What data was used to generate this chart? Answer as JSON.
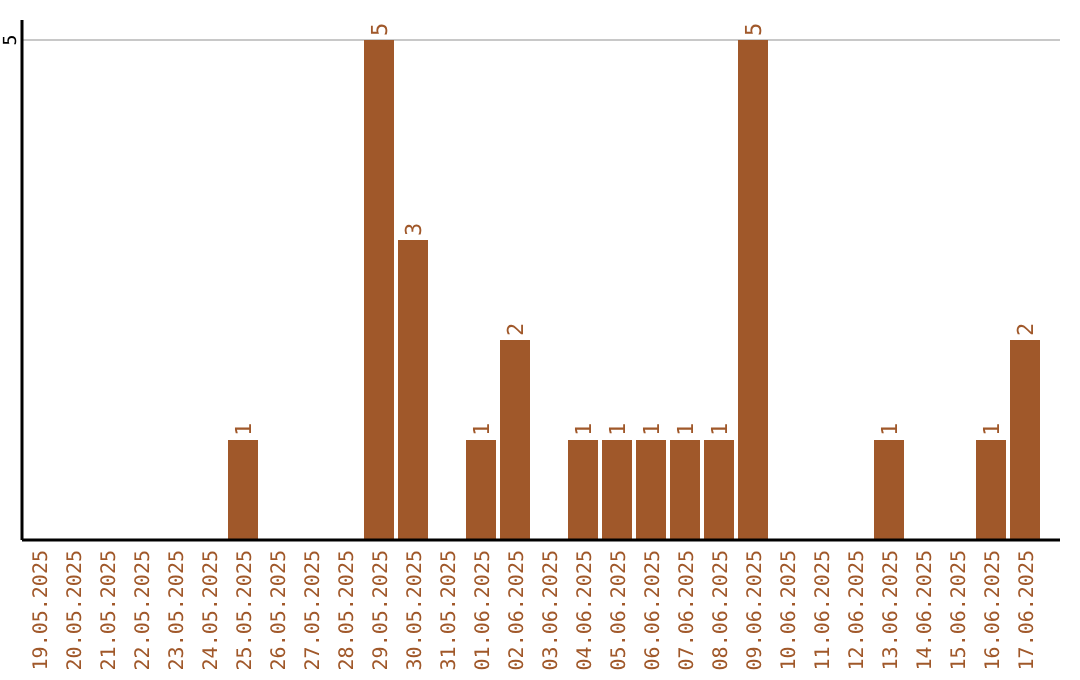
{
  "chart_data": {
    "type": "bar",
    "categories": [
      "19.05.2025",
      "20.05.2025",
      "21.05.2025",
      "22.05.2025",
      "23.05.2025",
      "24.05.2025",
      "25.05.2025",
      "26.05.2025",
      "27.05.2025",
      "28.05.2025",
      "29.05.2025",
      "30.05.2025",
      "31.05.2025",
      "01.06.2025",
      "02.06.2025",
      "03.06.2025",
      "04.06.2025",
      "05.06.2025",
      "06.06.2025",
      "07.06.2025",
      "08.06.2025",
      "09.06.2025",
      "10.06.2025",
      "11.06.2025",
      "12.06.2025",
      "13.06.2025",
      "14.06.2025",
      "15.06.2025",
      "16.06.2025",
      "17.06.2025"
    ],
    "values": [
      0,
      0,
      0,
      0,
      0,
      0,
      1,
      0,
      0,
      0,
      5,
      3,
      0,
      1,
      2,
      0,
      1,
      1,
      1,
      1,
      1,
      5,
      0,
      0,
      0,
      1,
      0,
      0,
      1,
      2
    ],
    "value_labels": [
      null,
      null,
      null,
      null,
      null,
      null,
      "1",
      null,
      null,
      null,
      "5",
      "3",
      null,
      "1",
      "2",
      null,
      "1",
      "1",
      "1",
      "1",
      "1",
      "5",
      null,
      null,
      null,
      "1",
      null,
      null,
      "1",
      "2"
    ],
    "color": "#a0582a",
    "ylim": [
      0,
      5.2
    ],
    "yticks": [
      5
    ],
    "grid": "y"
  }
}
